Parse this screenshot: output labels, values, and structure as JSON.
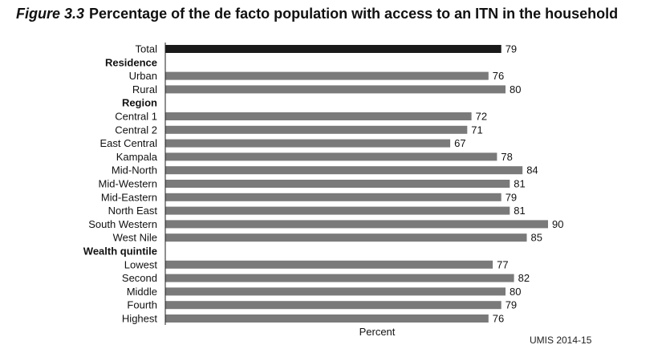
{
  "figure_label": "Figure 3.3",
  "title": "Percentage of the de facto population with access to an ITN in the household",
  "source": "UMIS 2014-15",
  "colors": {
    "total_bar": "#1a1a1a",
    "bar": "#7a7a7a",
    "axis": "#222222"
  },
  "chart_data": {
    "type": "bar",
    "orientation": "horizontal",
    "title": "Percentage of the de facto population with access to an ITN in the household",
    "xlabel": "Percent",
    "ylabel": "",
    "xlim": [
      0,
      100
    ],
    "grid": false,
    "rows": [
      {
        "label": "Total",
        "value": 79,
        "kind": "total"
      },
      {
        "label": "Residence",
        "kind": "header"
      },
      {
        "label": "Urban",
        "value": 76,
        "kind": "bar"
      },
      {
        "label": "Rural",
        "value": 80,
        "kind": "bar"
      },
      {
        "label": "Region",
        "kind": "header"
      },
      {
        "label": "Central 1",
        "value": 72,
        "kind": "bar"
      },
      {
        "label": "Central 2",
        "value": 71,
        "kind": "bar"
      },
      {
        "label": "East Central",
        "value": 67,
        "kind": "bar"
      },
      {
        "label": "Kampala",
        "value": 78,
        "kind": "bar"
      },
      {
        "label": "Mid-North",
        "value": 84,
        "kind": "bar"
      },
      {
        "label": "Mid-Western",
        "value": 81,
        "kind": "bar"
      },
      {
        "label": "Mid-Eastern",
        "value": 79,
        "kind": "bar"
      },
      {
        "label": "North East",
        "value": 81,
        "kind": "bar"
      },
      {
        "label": "South Western",
        "value": 90,
        "kind": "bar"
      },
      {
        "label": "West Nile",
        "value": 85,
        "kind": "bar"
      },
      {
        "label": "Wealth quintile",
        "kind": "header"
      },
      {
        "label": "Lowest",
        "value": 77,
        "kind": "bar"
      },
      {
        "label": "Second",
        "value": 82,
        "kind": "bar"
      },
      {
        "label": "Middle",
        "value": 80,
        "kind": "bar"
      },
      {
        "label": "Fourth",
        "value": 79,
        "kind": "bar"
      },
      {
        "label": "Highest",
        "value": 76,
        "kind": "bar"
      }
    ]
  }
}
